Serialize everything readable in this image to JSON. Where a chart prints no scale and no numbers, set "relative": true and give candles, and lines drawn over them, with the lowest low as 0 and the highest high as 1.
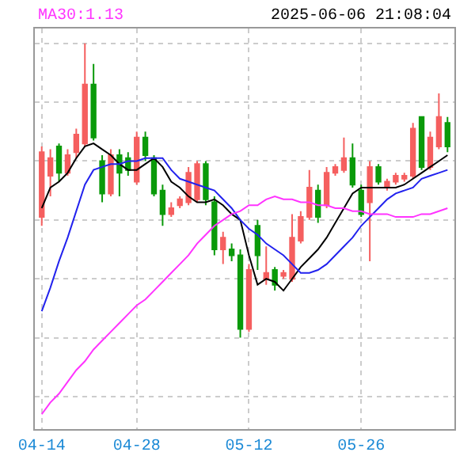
{
  "chart_data": {
    "type": "candlestick",
    "relative": true,
    "annotations": [
      "MA30:1.13",
      "2025-06-06 21:08:04"
    ],
    "categories": [
      "04-14",
      null,
      null,
      null,
      null,
      null,
      null,
      null,
      null,
      null,
      null,
      "04-28",
      null,
      null,
      null,
      null,
      null,
      null,
      null,
      null,
      null,
      null,
      null,
      null,
      "05-12",
      null,
      null,
      null,
      null,
      null,
      null,
      null,
      null,
      null,
      null,
      null,
      null,
      "05-26",
      null,
      null,
      null,
      null,
      null,
      null,
      null,
      null,
      null,
      null
    ],
    "ohlc": [
      [
        0.41,
        0.65,
        0.38,
        0.63
      ],
      [
        0.55,
        0.64,
        0.48,
        0.61
      ],
      [
        0.65,
        0.66,
        0.53,
        0.56
      ],
      [
        0.56,
        0.64,
        0.55,
        0.62
      ],
      [
        0.63,
        0.71,
        0.61,
        0.69
      ],
      [
        0.66,
        1.0,
        0.65,
        0.86
      ],
      [
        0.86,
        0.93,
        0.67,
        0.68
      ],
      [
        0.6,
        0.62,
        0.46,
        0.49
      ],
      [
        0.49,
        0.64,
        0.48,
        0.62
      ],
      [
        0.62,
        0.64,
        0.48,
        0.56
      ],
      [
        0.61,
        0.63,
        0.55,
        0.57
      ],
      [
        0.53,
        0.7,
        0.52,
        0.68
      ],
      [
        0.68,
        0.7,
        0.6,
        0.62
      ],
      [
        0.61,
        0.62,
        0.48,
        0.49
      ],
      [
        0.5,
        0.52,
        0.38,
        0.42
      ],
      [
        0.42,
        0.46,
        0.41,
        0.44
      ],
      [
        0.45,
        0.48,
        0.44,
        0.47
      ],
      [
        0.46,
        0.58,
        0.45,
        0.56
      ],
      [
        0.47,
        0.6,
        0.46,
        0.59
      ],
      [
        0.59,
        0.6,
        0.45,
        0.47
      ],
      [
        0.46,
        0.48,
        0.28,
        0.3
      ],
      [
        0.3,
        0.36,
        0.25,
        0.34
      ],
      [
        0.3,
        0.32,
        0.26,
        0.28
      ],
      [
        0.28,
        0.3,
        0.0,
        0.03
      ],
      [
        0.03,
        0.25,
        0.02,
        0.23
      ],
      [
        0.38,
        0.4,
        0.23,
        0.28
      ],
      [
        0.2,
        0.31,
        0.18,
        0.22
      ],
      [
        0.23,
        0.24,
        0.16,
        0.18
      ],
      [
        0.21,
        0.23,
        0.2,
        0.22
      ],
      [
        0.2,
        0.42,
        0.19,
        0.34
      ],
      [
        0.33,
        0.43,
        0.32,
        0.41
      ],
      [
        0.41,
        0.57,
        0.4,
        0.51
      ],
      [
        0.5,
        0.52,
        0.39,
        0.41
      ],
      [
        0.45,
        0.58,
        0.44,
        0.56
      ],
      [
        0.56,
        0.59,
        0.55,
        0.58
      ],
      [
        0.57,
        0.68,
        0.56,
        0.61
      ],
      [
        0.61,
        0.66,
        0.51,
        0.52
      ],
      [
        0.5,
        0.52,
        0.41,
        0.42
      ],
      [
        0.46,
        0.6,
        0.26,
        0.58
      ],
      [
        0.58,
        0.59,
        0.52,
        0.53
      ],
      [
        0.51,
        0.54,
        0.5,
        0.53
      ],
      [
        0.53,
        0.56,
        0.52,
        0.55
      ],
      [
        0.54,
        0.56,
        0.53,
        0.55
      ],
      [
        0.55,
        0.73,
        0.54,
        0.71
      ],
      [
        0.75,
        0.75,
        0.57,
        0.58
      ],
      [
        0.58,
        0.7,
        0.57,
        0.68
      ],
      [
        0.65,
        0.83,
        0.64,
        0.75
      ],
      [
        0.73,
        0.75,
        0.63,
        0.65
      ]
    ],
    "colors": [
      "#f55f5f",
      "#f55f5f",
      "#0a9a0a",
      "#f55f5f",
      "#f55f5f",
      "#f55f5f",
      "#0a9a0a",
      "#0a9a0a",
      "#f55f5f",
      "#0a9a0a",
      "#0a9a0a",
      "#f55f5f",
      "#0a9a0a",
      "#0a9a0a",
      "#0a9a0a",
      "#f55f5f",
      "#f55f5f",
      "#f55f5f",
      "#f55f5f",
      "#0a9a0a",
      "#0a9a0a",
      "#f55f5f",
      "#0a9a0a",
      "#0a9a0a",
      "#f55f5f",
      "#0a9a0a",
      "#f55f5f",
      "#0a9a0a",
      "#f55f5f",
      "#f55f5f",
      "#f55f5f",
      "#f55f5f",
      "#0a9a0a",
      "#f55f5f",
      "#f55f5f",
      "#f55f5f",
      "#0a9a0a",
      "#0a9a0a",
      "#f55f5f",
      "#0a9a0a",
      "#f55f5f",
      "#f55f5f",
      "#f55f5f",
      "#f55f5f",
      "#0a9a0a",
      "#f55f5f",
      "#f55f5f",
      "#0a9a0a"
    ],
    "series": [
      {
        "type": "line",
        "color": "#000000",
        "values": [
          0.44,
          0.51,
          0.53,
          0.56,
          0.61,
          0.65,
          0.66,
          0.64,
          0.62,
          0.59,
          0.57,
          0.57,
          0.59,
          0.61,
          0.58,
          0.53,
          0.51,
          0.48,
          0.46,
          0.46,
          0.47,
          0.45,
          0.42,
          0.4,
          0.28,
          0.18,
          0.2,
          0.19,
          0.16,
          0.2,
          0.24,
          0.27,
          0.3,
          0.34,
          0.39,
          0.44,
          0.49,
          0.51,
          0.51,
          0.51,
          0.51,
          0.51,
          0.52,
          0.54,
          0.56,
          0.58,
          0.6,
          0.62
        ]
      },
      {
        "type": "line",
        "color": "#2222ee",
        "values": [
          0.09,
          0.17,
          0.26,
          0.34,
          0.43,
          0.52,
          0.57,
          0.58,
          0.59,
          0.59,
          0.6,
          0.6,
          0.61,
          0.61,
          0.61,
          0.57,
          0.54,
          0.53,
          0.52,
          0.51,
          0.5,
          0.47,
          0.44,
          0.4,
          0.37,
          0.35,
          0.32,
          0.3,
          0.28,
          0.25,
          0.22,
          0.22,
          0.23,
          0.25,
          0.28,
          0.31,
          0.34,
          0.38,
          0.41,
          0.44,
          0.47,
          0.49,
          0.5,
          0.51,
          0.54,
          0.55,
          0.56,
          0.57
        ]
      },
      {
        "type": "line",
        "color": "#ff33ff",
        "values": [
          -0.26,
          -0.22,
          -0.19,
          -0.15,
          -0.11,
          -0.08,
          -0.04,
          -0.01,
          0.02,
          0.05,
          0.08,
          0.11,
          0.13,
          0.16,
          0.19,
          0.22,
          0.25,
          0.28,
          0.32,
          0.35,
          0.38,
          0.4,
          0.42,
          0.43,
          0.45,
          0.45,
          0.47,
          0.48,
          0.47,
          0.47,
          0.46,
          0.46,
          0.45,
          0.45,
          0.44,
          0.44,
          0.43,
          0.43,
          0.42,
          0.42,
          0.42,
          0.41,
          0.41,
          0.41,
          0.42,
          0.42,
          0.43,
          0.44
        ]
      }
    ],
    "grid": true
  }
}
